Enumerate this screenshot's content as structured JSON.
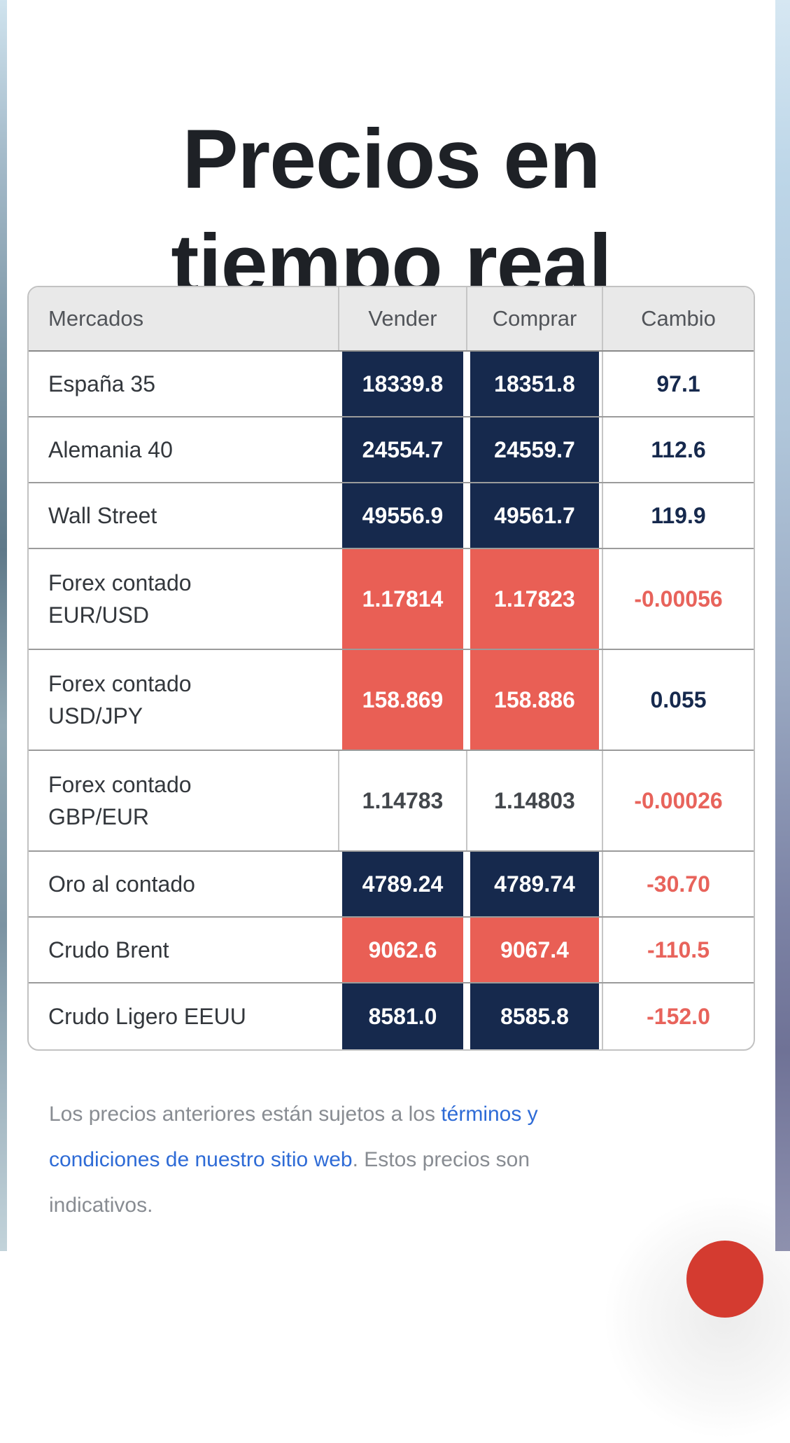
{
  "title": {
    "line1": "Precios en",
    "line2": "tiempo real"
  },
  "table": {
    "headers": {
      "market": "Mercados",
      "sell": "Vender",
      "buy": "Comprar",
      "change": "Cambio"
    },
    "rows": [
      {
        "market": "España 35",
        "sell": "18339.8",
        "buy": "18351.8",
        "change": "97.1",
        "cell_tone": "navy",
        "change_tone": "positive"
      },
      {
        "market": "Alemania 40",
        "sell": "24554.7",
        "buy": "24559.7",
        "change": "112.6",
        "cell_tone": "navy",
        "change_tone": "positive"
      },
      {
        "market": "Wall Street",
        "sell": "49556.9",
        "buy": "49561.7",
        "change": "119.9",
        "cell_tone": "navy",
        "change_tone": "positive"
      },
      {
        "market": "Forex contado EUR/USD",
        "market_line1": "Forex contado",
        "market_line2": "EUR/USD",
        "sell": "1.17814",
        "buy": "1.17823",
        "change": "-0.00056",
        "cell_tone": "red",
        "change_tone": "negative"
      },
      {
        "market": "Forex contado USD/JPY",
        "market_line1": "Forex contado",
        "market_line2": "USD/JPY",
        "sell": "158.869",
        "buy": "158.886",
        "change": "0.055",
        "cell_tone": "red",
        "change_tone": "positive"
      },
      {
        "market": "Forex contado GBP/EUR",
        "market_line1": "Forex contado",
        "market_line2": "GBP/EUR",
        "sell": "1.14783",
        "buy": "1.14803",
        "change": "-0.00026",
        "cell_tone": "plain",
        "change_tone": "negative"
      },
      {
        "market": "Oro al contado",
        "sell": "4789.24",
        "buy": "4789.74",
        "change": "-30.70",
        "cell_tone": "navy",
        "change_tone": "negative"
      },
      {
        "market": "Crudo Brent",
        "sell": "9062.6",
        "buy": "9067.4",
        "change": "-110.5",
        "cell_tone": "red",
        "change_tone": "negative"
      },
      {
        "market": "Crudo Ligero EEUU",
        "sell": "8581.0",
        "buy": "8585.8",
        "change": "-152.0",
        "cell_tone": "navy",
        "change_tone": "negative"
      }
    ]
  },
  "footer": {
    "text_before": "Los precios anteriores están sujetos a los ",
    "link_text": "términos y condiciones de nuestro sitio web",
    "text_after": ". Estos precios son indicativos."
  },
  "colors": {
    "navy_cell": "#16294d",
    "red_cell": "#e95f55",
    "positive_change": "#16294d",
    "negative_change": "#e8635b",
    "link_blue": "#2e6bd6",
    "chat_button_red": "#d43b30",
    "header_bg": "#e9e9e9"
  }
}
